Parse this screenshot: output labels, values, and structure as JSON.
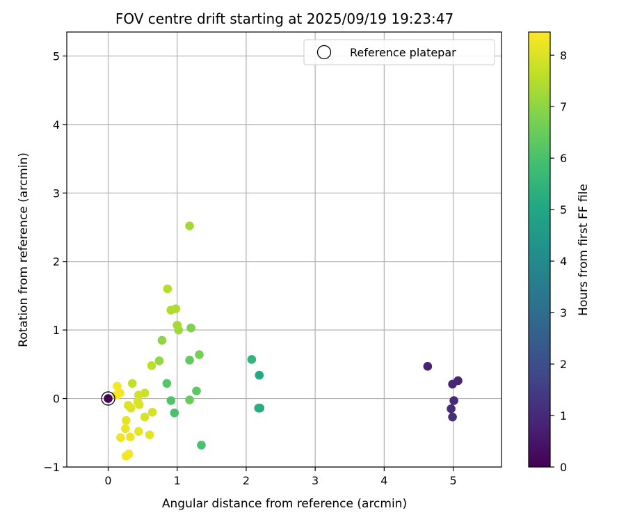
{
  "chart_data": {
    "type": "scatter",
    "title": "FOV centre drift starting at 2025/09/19 19:23:47",
    "xlabel": "Angular distance from reference (arcmin)",
    "ylabel": "Rotation from reference (arcmin)",
    "xlim": [
      -0.6,
      5.7
    ],
    "ylim": [
      -1.0,
      5.35
    ],
    "xticks": [
      0,
      1,
      2,
      3,
      4,
      5
    ],
    "yticks": [
      -1,
      0,
      1,
      2,
      3,
      4,
      5
    ],
    "grid": true,
    "legend": {
      "location": "top-right",
      "entries": [
        "Reference platepar"
      ]
    },
    "colorbar": {
      "label": "Hours from first FF file",
      "min": 0,
      "max": 8.45,
      "ticks": [
        0,
        1,
        2,
        3,
        4,
        5,
        6,
        7,
        8
      ],
      "colormap": "viridis"
    },
    "reference_point": {
      "x": 0,
      "y": 0
    },
    "points": [
      {
        "x": 0.0,
        "y": 0.0,
        "h": 0.05
      },
      {
        "x": 4.63,
        "y": 0.47,
        "h": 0.8
      },
      {
        "x": 5.07,
        "y": 0.26,
        "h": 0.9
      },
      {
        "x": 4.99,
        "y": 0.21,
        "h": 0.95
      },
      {
        "x": 5.01,
        "y": -0.03,
        "h": 1.0
      },
      {
        "x": 4.97,
        "y": -0.15,
        "h": 1.05
      },
      {
        "x": 4.99,
        "y": -0.27,
        "h": 1.1
      },
      {
        "x": 2.19,
        "y": 0.34,
        "h": 5.1
      },
      {
        "x": 2.18,
        "y": -0.14,
        "h": 5.2
      },
      {
        "x": 2.2,
        "y": -0.14,
        "h": 5.25
      },
      {
        "x": 2.08,
        "y": 0.57,
        "h": 5.5
      },
      {
        "x": 1.35,
        "y": -0.68,
        "h": 6.0
      },
      {
        "x": 0.96,
        "y": -0.21,
        "h": 6.0
      },
      {
        "x": 0.91,
        "y": -0.03,
        "h": 6.1
      },
      {
        "x": 0.85,
        "y": 0.22,
        "h": 6.2
      },
      {
        "x": 1.28,
        "y": 0.11,
        "h": 6.3
      },
      {
        "x": 1.18,
        "y": 0.56,
        "h": 6.4
      },
      {
        "x": 1.18,
        "y": -0.02,
        "h": 6.5
      },
      {
        "x": 1.32,
        "y": 0.64,
        "h": 6.7
      },
      {
        "x": 1.2,
        "y": 1.03,
        "h": 6.8
      },
      {
        "x": 0.78,
        "y": 0.85,
        "h": 7.0
      },
      {
        "x": 0.74,
        "y": 0.55,
        "h": 7.1
      },
      {
        "x": 1.02,
        "y": 1.0,
        "h": 7.2
      },
      {
        "x": 1.0,
        "y": 1.07,
        "h": 7.3
      },
      {
        "x": 0.98,
        "y": 1.31,
        "h": 7.4
      },
      {
        "x": 0.91,
        "y": 1.29,
        "h": 7.45
      },
      {
        "x": 0.86,
        "y": 1.6,
        "h": 7.5
      },
      {
        "x": 1.18,
        "y": 2.52,
        "h": 7.3
      },
      {
        "x": 0.63,
        "y": 0.48,
        "h": 7.6
      },
      {
        "x": 0.35,
        "y": 0.22,
        "h": 7.7
      },
      {
        "x": 0.53,
        "y": 0.08,
        "h": 7.8
      },
      {
        "x": 0.44,
        "y": 0.05,
        "h": 7.9
      },
      {
        "x": 0.64,
        "y": -0.2,
        "h": 7.9
      },
      {
        "x": 0.53,
        "y": -0.27,
        "h": 7.95
      },
      {
        "x": 0.45,
        "y": -0.09,
        "h": 8.0
      },
      {
        "x": 0.43,
        "y": -0.05,
        "h": 8.0
      },
      {
        "x": 0.33,
        "y": -0.14,
        "h": 8.0
      },
      {
        "x": 0.29,
        "y": -0.1,
        "h": 8.05
      },
      {
        "x": 0.44,
        "y": -0.48,
        "h": 8.1
      },
      {
        "x": 0.6,
        "y": -0.53,
        "h": 8.1
      },
      {
        "x": 0.26,
        "y": -0.32,
        "h": 8.15
      },
      {
        "x": 0.25,
        "y": -0.44,
        "h": 8.2
      },
      {
        "x": 0.32,
        "y": -0.56,
        "h": 8.2
      },
      {
        "x": 0.18,
        "y": -0.57,
        "h": 8.25
      },
      {
        "x": 0.3,
        "y": -0.81,
        "h": 8.3
      },
      {
        "x": 0.26,
        "y": -0.84,
        "h": 8.3
      },
      {
        "x": 0.13,
        "y": 0.18,
        "h": 8.3
      },
      {
        "x": 0.17,
        "y": 0.08,
        "h": 8.35
      },
      {
        "x": 0.12,
        "y": 0.05,
        "h": 8.4
      }
    ]
  }
}
